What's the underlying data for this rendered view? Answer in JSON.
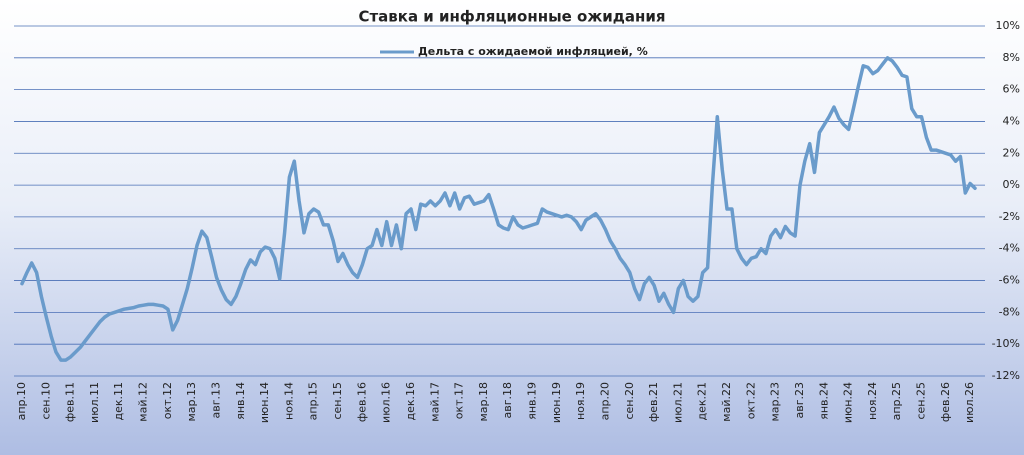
{
  "chart_data": {
    "type": "line",
    "title": "Ставка и инфляционные ожидания",
    "categories": [
      "апр.10",
      null,
      null,
      null,
      null,
      "сен.10",
      null,
      null,
      null,
      null,
      "фев.11",
      null,
      null,
      null,
      null,
      "июл.11",
      null,
      null,
      null,
      null,
      "дек.11",
      null,
      null,
      null,
      null,
      "май.12",
      null,
      null,
      null,
      null,
      "окт.12",
      null,
      null,
      null,
      null,
      "мар.13",
      null,
      null,
      null,
      null,
      "авг.13",
      null,
      null,
      null,
      null,
      "янв.14",
      null,
      null,
      null,
      null,
      "июн.14",
      null,
      null,
      null,
      null,
      "ноя.14",
      null,
      null,
      null,
      null,
      "апр.15",
      null,
      null,
      null,
      null,
      "сен.15",
      null,
      null,
      null,
      null,
      "фев.16",
      null,
      null,
      null,
      null,
      "июл.16",
      null,
      null,
      null,
      null,
      "дек.16",
      null,
      null,
      null,
      null,
      "май.17",
      null,
      null,
      null,
      null,
      "окт.17",
      null,
      null,
      null,
      null,
      "мар.18",
      null,
      null,
      null,
      null,
      "авг.18",
      null,
      null,
      null,
      null,
      "янв.19",
      null,
      null,
      null,
      null,
      "июн.19",
      null,
      null,
      null,
      null,
      "ноя.19",
      null,
      null,
      null,
      null,
      "апр.20",
      null,
      null,
      null,
      null,
      "сен.20",
      null,
      null,
      null,
      null,
      "фев.21",
      null,
      null,
      null,
      null,
      "июл.21",
      null,
      null,
      null,
      null,
      "дек.21",
      null,
      null,
      null,
      null,
      "май.22",
      null,
      null,
      null,
      null,
      "окт.22",
      null,
      null,
      null,
      null,
      "мар.23",
      null,
      null,
      null,
      null,
      "авг.23",
      null,
      null,
      null,
      null,
      "янв.24",
      null,
      null,
      null,
      null,
      "июн.24",
      null,
      null,
      null,
      null,
      "ноя.24",
      null,
      null,
      null,
      null,
      "апр.25",
      null,
      null,
      null,
      null,
      "сен.25",
      null,
      null,
      null,
      null,
      "фев.26",
      null,
      null,
      null,
      null,
      "июл.26",
      null
    ],
    "series": [
      {
        "name": "Дельта с ожидаемой инфляцией, %",
        "color": "#6a9bcb",
        "values": [
          -6.2,
          -5.5,
          -4.9,
          -5.5,
          -7.0,
          -8.3,
          -9.5,
          -10.5,
          -11.0,
          -11.0,
          -10.8,
          -10.5,
          -10.2,
          -9.8,
          -9.4,
          -9.0,
          -8.6,
          -8.3,
          -8.1,
          -8.0,
          -7.9,
          -7.8,
          -7.75,
          -7.7,
          -7.6,
          -7.55,
          -7.5,
          -7.5,
          -7.55,
          -7.6,
          -7.8,
          -9.1,
          -8.5,
          -7.5,
          -6.5,
          -5.2,
          -3.8,
          -2.9,
          -3.3,
          -4.5,
          -5.8,
          -6.6,
          -7.2,
          -7.5,
          -7.0,
          -6.2,
          -5.3,
          -4.7,
          -5.0,
          -4.2,
          -3.9,
          -4.0,
          -4.6,
          -5.9,
          -3.0,
          0.5,
          1.5,
          -1.0,
          -3.0,
          -1.8,
          -1.5,
          -1.7,
          -2.5,
          -2.5,
          -3.5,
          -4.8,
          -4.3,
          -5.0,
          -5.5,
          -5.8,
          -5.0,
          -4.0,
          -3.8,
          -2.8,
          -3.8,
          -2.3,
          -3.8,
          -2.5,
          -4.0,
          -1.8,
          -1.5,
          -2.8,
          -1.2,
          -1.3,
          -1.0,
          -1.3,
          -1.0,
          -0.5,
          -1.3,
          -0.5,
          -1.5,
          -0.8,
          -0.7,
          -1.2,
          -1.1,
          -1.0,
          -0.6,
          -1.5,
          -2.5,
          -2.7,
          -2.8,
          -2.0,
          -2.5,
          -2.7,
          -2.6,
          -2.5,
          -2.4,
          -1.5,
          -1.7,
          -1.8,
          -1.9,
          -2.0,
          -1.9,
          -2.0,
          -2.3,
          -2.8,
          -2.2,
          -2.0,
          -1.8,
          -2.2,
          -2.8,
          -3.5,
          -4.0,
          -4.6,
          -5.0,
          -5.5,
          -6.5,
          -7.2,
          -6.2,
          -5.8,
          -6.3,
          -7.3,
          -6.8,
          -7.5,
          -8.0,
          -6.5,
          -6.0,
          -7.0,
          -7.3,
          -7.0,
          -5.5,
          -5.2,
          0.0,
          4.3,
          1.0,
          -1.5,
          -1.5,
          -4.0,
          -4.6,
          -5.0,
          -4.6,
          -4.5,
          -4.0,
          -4.3,
          -3.2,
          -2.8,
          -3.3,
          -2.6,
          -3.0,
          -3.2,
          0.0,
          1.5,
          2.6,
          0.8,
          3.3,
          3.8,
          4.3,
          4.9,
          4.2,
          3.8,
          3.5,
          4.8,
          6.2,
          7.5,
          7.4,
          7.0,
          7.2,
          7.6,
          8.0,
          7.8,
          7.4,
          6.9,
          6.8,
          4.8,
          4.3,
          4.3,
          3.0,
          2.2,
          2.2,
          2.1,
          2.0,
          1.9,
          1.5,
          1.8,
          -0.5,
          0.1,
          -0.2
        ]
      }
    ],
    "ylim": [
      -12,
      10
    ],
    "yticks": [
      {
        "value": -12,
        "label": "-12%"
      },
      {
        "value": -10,
        "label": "-10%"
      },
      {
        "value": -8,
        "label": "-8%"
      },
      {
        "value": -6,
        "label": "-6%"
      },
      {
        "value": -4,
        "label": "-4%"
      },
      {
        "value": -2,
        "label": "-2%"
      },
      {
        "value": 0,
        "label": "0%"
      },
      {
        "value": 2,
        "label": "2%"
      },
      {
        "value": 4,
        "label": "4%"
      },
      {
        "value": 6,
        "label": "6%"
      },
      {
        "value": 8,
        "label": "8%"
      },
      {
        "value": 10,
        "label": "10%"
      }
    ],
    "grid": true,
    "legend": "top"
  }
}
